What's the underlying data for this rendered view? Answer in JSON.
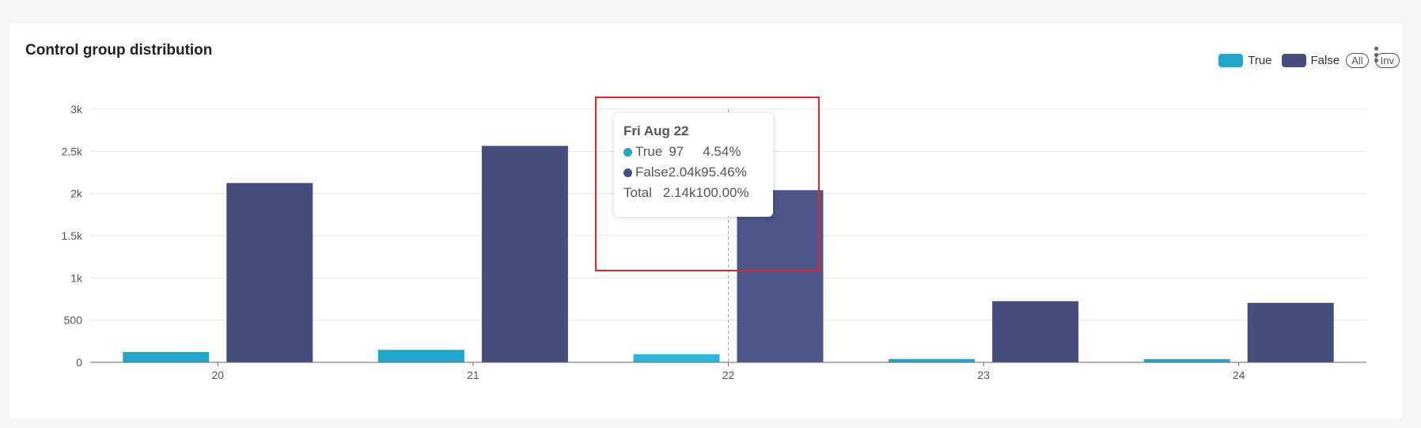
{
  "card": {
    "title": "Control group distribution"
  },
  "legend": {
    "items": [
      {
        "label": "True",
        "color": "#1fa8c9"
      },
      {
        "label": "False",
        "color": "#454e7c"
      }
    ],
    "all_label": "All",
    "inv_label": "Inv"
  },
  "tooltip": {
    "title": "Fri Aug 22",
    "rows": [
      {
        "label": "True",
        "value": "97",
        "percent": "4.54%",
        "color": "#1fa8c9"
      },
      {
        "label": "False",
        "value": "2.04k",
        "percent": "95.46%",
        "color": "#454e7c"
      }
    ],
    "total_label": "Total",
    "total_value": "2.14k",
    "total_percent": "100.00%"
  },
  "chart_data": {
    "type": "bar",
    "title": "Control group distribution",
    "categories": [
      "20",
      "21",
      "22",
      "23",
      "24"
    ],
    "series": [
      {
        "name": "True",
        "color": "#1fa8c9",
        "values": [
          123,
          148,
          97,
          40,
          38
        ]
      },
      {
        "name": "False",
        "color": "#454e7c",
        "values": [
          2125,
          2565,
          2040,
          725,
          705
        ]
      }
    ],
    "y_ticks": [
      0,
      500,
      1000,
      1500,
      2000,
      2500,
      3000
    ],
    "y_tick_labels": [
      "0",
      "500",
      "1k",
      "1.5k",
      "2k",
      "2.5k",
      "3k"
    ],
    "ylim": [
      0,
      3000
    ],
    "grid": true,
    "legend_position": "top-right",
    "highlighted_category": "22"
  }
}
